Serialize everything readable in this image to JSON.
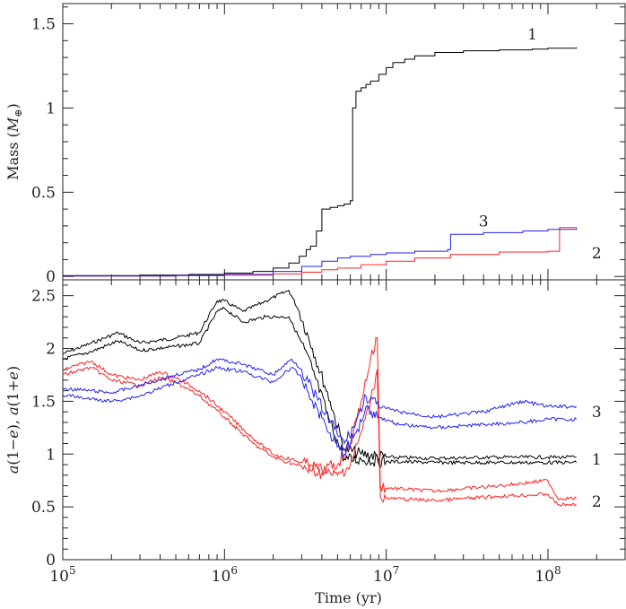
{
  "chart_data": [
    {
      "type": "line",
      "panel": "top",
      "xscale": "log",
      "xlim": [
        100000,
        300000000
      ],
      "ylim": [
        -0.02,
        1.62
      ],
      "ylabel_parts": [
        "Mass (",
        "M",
        "⊕",
        ")"
      ],
      "xticks": [
        {
          "base": "10",
          "exp": "5",
          "value": 100000
        },
        {
          "base": "10",
          "exp": "6",
          "value": 1000000
        },
        {
          "base": "10",
          "exp": "7",
          "value": 10000000
        },
        {
          "base": "10",
          "exp": "8",
          "value": 100000000
        }
      ],
      "yticks": [
        {
          "label": "0",
          "value": 0
        },
        {
          "label": "0.5",
          "value": 0.5
        },
        {
          "label": "1",
          "value": 1
        },
        {
          "label": "1.5",
          "value": 1.5
        }
      ],
      "annotations": [
        {
          "text": "1",
          "x": 80000000,
          "y": 1.44
        },
        {
          "text": "3",
          "x": 40000000,
          "y": 0.33
        },
        {
          "text": "2",
          "x": 200000000,
          "y": 0.14
        }
      ],
      "series": [
        {
          "id": "1",
          "color": "#000000",
          "x": [
            100000,
            300000,
            600000,
            1000000,
            1500000,
            2000000,
            2500000,
            2900000,
            3200000,
            3400000,
            3700000,
            4000000,
            4500000,
            5000000,
            5500000,
            6000000,
            6200000,
            6500000,
            7000000,
            7500000,
            8000000,
            9000000,
            10000000,
            11000000,
            13000000,
            15000000,
            20000000,
            30000000,
            50000000,
            80000000,
            100000000,
            150000000
          ],
          "y": [
            0.005,
            0.008,
            0.012,
            0.02,
            0.03,
            0.05,
            0.08,
            0.12,
            0.16,
            0.18,
            0.27,
            0.4,
            0.41,
            0.42,
            0.43,
            0.45,
            1.0,
            1.1,
            1.12,
            1.14,
            1.16,
            1.2,
            1.24,
            1.27,
            1.29,
            1.31,
            1.33,
            1.34,
            1.345,
            1.35,
            1.355,
            1.36
          ]
        },
        {
          "id": "2",
          "color": "#ff2222",
          "x": [
            100000,
            500000,
            1000000,
            2000000,
            3000000,
            4000000,
            5000000,
            7000000,
            10000000,
            15000000,
            25000000,
            50000000,
            100000000,
            115000000,
            118000000,
            150000000
          ],
          "y": [
            0.003,
            0.005,
            0.008,
            0.015,
            0.025,
            0.04,
            0.05,
            0.07,
            0.09,
            0.11,
            0.13,
            0.145,
            0.15,
            0.15,
            0.29,
            0.29
          ]
        },
        {
          "id": "3",
          "color": "#2222ee",
          "x": [
            100000,
            500000,
            1000000,
            2000000,
            3000000,
            4000000,
            5000000,
            6000000,
            8000000,
            10000000,
            15000000,
            24000000,
            25000000,
            40000000,
            70000000,
            100000000,
            150000000
          ],
          "y": [
            0.003,
            0.006,
            0.012,
            0.03,
            0.06,
            0.09,
            0.11,
            0.12,
            0.13,
            0.14,
            0.15,
            0.16,
            0.25,
            0.26,
            0.27,
            0.28,
            0.29
          ]
        }
      ]
    },
    {
      "type": "line",
      "panel": "bottom",
      "xscale": "log",
      "xlim": [
        100000,
        300000000
      ],
      "ylim": [
        0,
        2.65
      ],
      "xlabel": "Time (yr)",
      "ylabel_parts": [
        "a",
        "(1−",
        "e",
        "), ",
        "a",
        "(1+",
        "e",
        ")"
      ],
      "xticks": [
        {
          "base": "10",
          "exp": "5",
          "value": 100000
        },
        {
          "base": "10",
          "exp": "6",
          "value": 1000000
        },
        {
          "base": "10",
          "exp": "7",
          "value": 10000000
        },
        {
          "base": "10",
          "exp": "8",
          "value": 100000000
        }
      ],
      "yticks": [
        {
          "label": "0",
          "value": 0
        },
        {
          "label": "0.5",
          "value": 0.5
        },
        {
          "label": "1",
          "value": 1
        },
        {
          "label": "1.5",
          "value": 1.5
        },
        {
          "label": "2",
          "value": 2
        },
        {
          "label": "2.5",
          "value": 2.5
        }
      ],
      "annotations": [
        {
          "text": "3",
          "x": 200000000,
          "y": 1.4
        },
        {
          "text": "1",
          "x": 200000000,
          "y": 0.95
        },
        {
          "text": "2",
          "x": 200000000,
          "y": 0.55
        }
      ],
      "series": [
        {
          "id": "1-outer",
          "color": "#000000",
          "x": [
            100000,
            150000,
            220000,
            300000,
            500000,
            700000,
            900000,
            1000000,
            1300000,
            1800000,
            2500000,
            2900000,
            3500000,
            4500000,
            5500000,
            7000000,
            10000000,
            20000000,
            50000000,
            100000000,
            150000000
          ],
          "y": [
            1.95,
            2.05,
            2.15,
            2.05,
            2.1,
            2.15,
            2.45,
            2.45,
            2.35,
            2.45,
            2.55,
            2.35,
            2.0,
            1.5,
            1.05,
            1.0,
            0.97,
            0.96,
            0.97,
            0.97,
            0.97
          ]
        },
        {
          "id": "1-inner",
          "color": "#000000",
          "x": [
            100000,
            150000,
            220000,
            300000,
            500000,
            700000,
            900000,
            1000000,
            1300000,
            1800000,
            2500000,
            2900000,
            3500000,
            4500000,
            5500000,
            7000000,
            10000000,
            20000000,
            50000000,
            100000000,
            150000000
          ],
          "y": [
            1.9,
            1.97,
            2.07,
            1.98,
            2.02,
            2.05,
            2.35,
            2.38,
            2.25,
            2.3,
            2.3,
            2.1,
            1.8,
            1.3,
            0.95,
            0.95,
            0.93,
            0.92,
            0.92,
            0.92,
            0.92
          ]
        },
        {
          "id": "2-outer",
          "color": "#ff2222",
          "x": [
            100000,
            150000,
            200000,
            300000,
            400000,
            500000,
            700000,
            1000000,
            1500000,
            2000000,
            3000000,
            4000000,
            5000000,
            6000000,
            7000000,
            8000000,
            8800000,
            9200000,
            10000000,
            20000000,
            50000000,
            100000000,
            115000000,
            150000000
          ],
          "y": [
            1.8,
            1.88,
            1.75,
            1.7,
            1.78,
            1.72,
            1.6,
            1.4,
            1.15,
            1.0,
            0.92,
            0.85,
            0.9,
            1.1,
            1.5,
            1.9,
            2.1,
            0.7,
            0.68,
            0.65,
            0.7,
            0.75,
            0.58,
            0.58
          ]
        },
        {
          "id": "2-inner",
          "color": "#ff2222",
          "x": [
            100000,
            150000,
            200000,
            300000,
            400000,
            500000,
            700000,
            1000000,
            1500000,
            2000000,
            3000000,
            4000000,
            5000000,
            6000000,
            7000000,
            8000000,
            8800000,
            9200000,
            10000000,
            20000000,
            50000000,
            100000000,
            115000000,
            150000000
          ],
          "y": [
            1.75,
            1.82,
            1.7,
            1.65,
            1.72,
            1.68,
            1.55,
            1.35,
            1.1,
            0.97,
            0.88,
            0.82,
            0.8,
            0.9,
            1.2,
            1.5,
            1.8,
            0.6,
            0.58,
            0.56,
            0.6,
            0.62,
            0.52,
            0.52
          ]
        },
        {
          "id": "3-outer",
          "color": "#2222ee",
          "x": [
            100000,
            150000,
            200000,
            300000,
            500000,
            700000,
            900000,
            1300000,
            2000000,
            2600000,
            3000000,
            3500000,
            4500000,
            5500000,
            6500000,
            7500000,
            9000000,
            12000000,
            20000000,
            40000000,
            70000000,
            100000000,
            150000000
          ],
          "y": [
            1.62,
            1.6,
            1.58,
            1.65,
            1.75,
            1.8,
            1.9,
            1.85,
            1.75,
            1.9,
            1.8,
            1.6,
            1.3,
            1.1,
            1.3,
            1.55,
            1.45,
            1.4,
            1.35,
            1.4,
            1.5,
            1.45,
            1.45
          ]
        },
        {
          "id": "3-inner",
          "color": "#2222ee",
          "x": [
            100000,
            150000,
            200000,
            300000,
            500000,
            700000,
            900000,
            1300000,
            2000000,
            2600000,
            3000000,
            3500000,
            4500000,
            5500000,
            6500000,
            7500000,
            9000000,
            12000000,
            20000000,
            40000000,
            70000000,
            100000000,
            150000000
          ],
          "y": [
            1.56,
            1.52,
            1.5,
            1.55,
            1.68,
            1.75,
            1.82,
            1.78,
            1.68,
            1.82,
            1.72,
            1.5,
            1.2,
            1.0,
            1.2,
            1.45,
            1.35,
            1.28,
            1.25,
            1.28,
            1.3,
            1.33,
            1.33
          ]
        }
      ]
    }
  ]
}
